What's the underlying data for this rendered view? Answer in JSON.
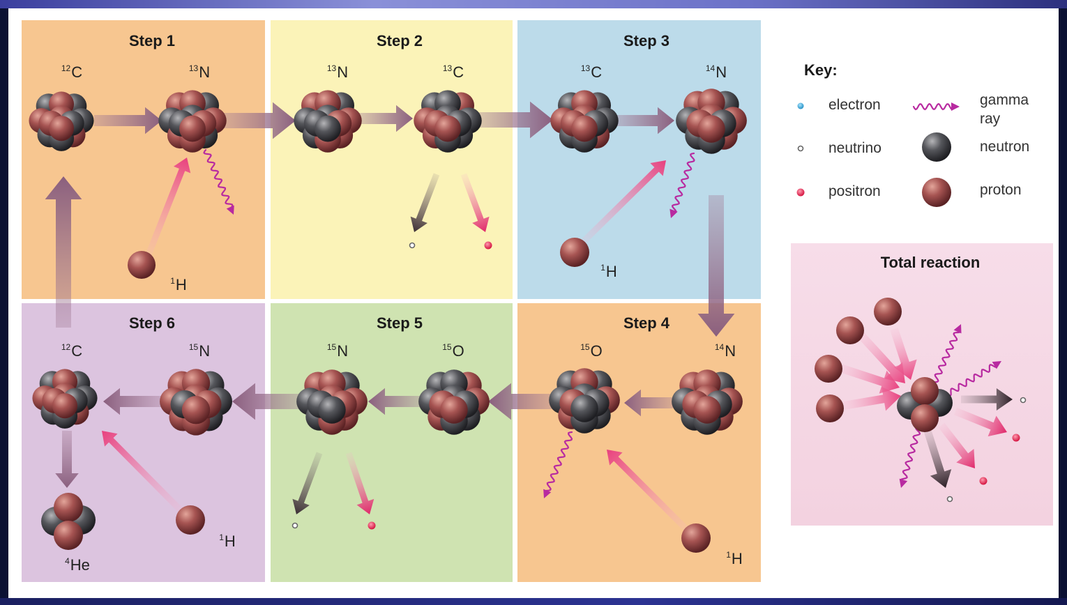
{
  "steps": {
    "s1": {
      "title": "Step 1",
      "a": {
        "mass": "12",
        "el": "C"
      },
      "b": {
        "mass": "13",
        "el": "N"
      },
      "h": {
        "mass": "1",
        "el": "H"
      }
    },
    "s2": {
      "title": "Step 2",
      "a": {
        "mass": "13",
        "el": "N"
      },
      "b": {
        "mass": "13",
        "el": "C"
      }
    },
    "s3": {
      "title": "Step 3",
      "a": {
        "mass": "13",
        "el": "C"
      },
      "b": {
        "mass": "14",
        "el": "N"
      },
      "h": {
        "mass": "1",
        "el": "H"
      }
    },
    "s4": {
      "title": "Step 4",
      "a": {
        "mass": "15",
        "el": "O"
      },
      "b": {
        "mass": "14",
        "el": "N"
      },
      "h": {
        "mass": "1",
        "el": "H"
      }
    },
    "s5": {
      "title": "Step 5",
      "a": {
        "mass": "15",
        "el": "N"
      },
      "b": {
        "mass": "15",
        "el": "O"
      }
    },
    "s6": {
      "title": "Step 6",
      "a": {
        "mass": "12",
        "el": "C"
      },
      "b": {
        "mass": "15",
        "el": "N"
      },
      "h": {
        "mass": "1",
        "el": "H"
      },
      "he": {
        "mass": "4",
        "el": "He"
      }
    }
  },
  "key": {
    "title": "Key:",
    "electron": "electron",
    "neutrino": "neutrino",
    "positron": "positron",
    "gamma": "gamma ray",
    "neutron": "neutron",
    "proton": "proton"
  },
  "total": {
    "title": "Total reaction"
  },
  "colors": {
    "step1": "#f7c690",
    "step2": "#fbf3b8",
    "step3": "#bcdbea",
    "step4": "#f7c690",
    "step5": "#cfe3b1",
    "step6": "#dcc4df",
    "total_bg": "#f6d9e5",
    "proton": "#9a4a4a",
    "neutron": "#4a4a4f",
    "positron": "#e8335a",
    "electron": "#3aa7d8",
    "gamma": "#b82aa0",
    "flow_arrow": "#a27a95"
  }
}
